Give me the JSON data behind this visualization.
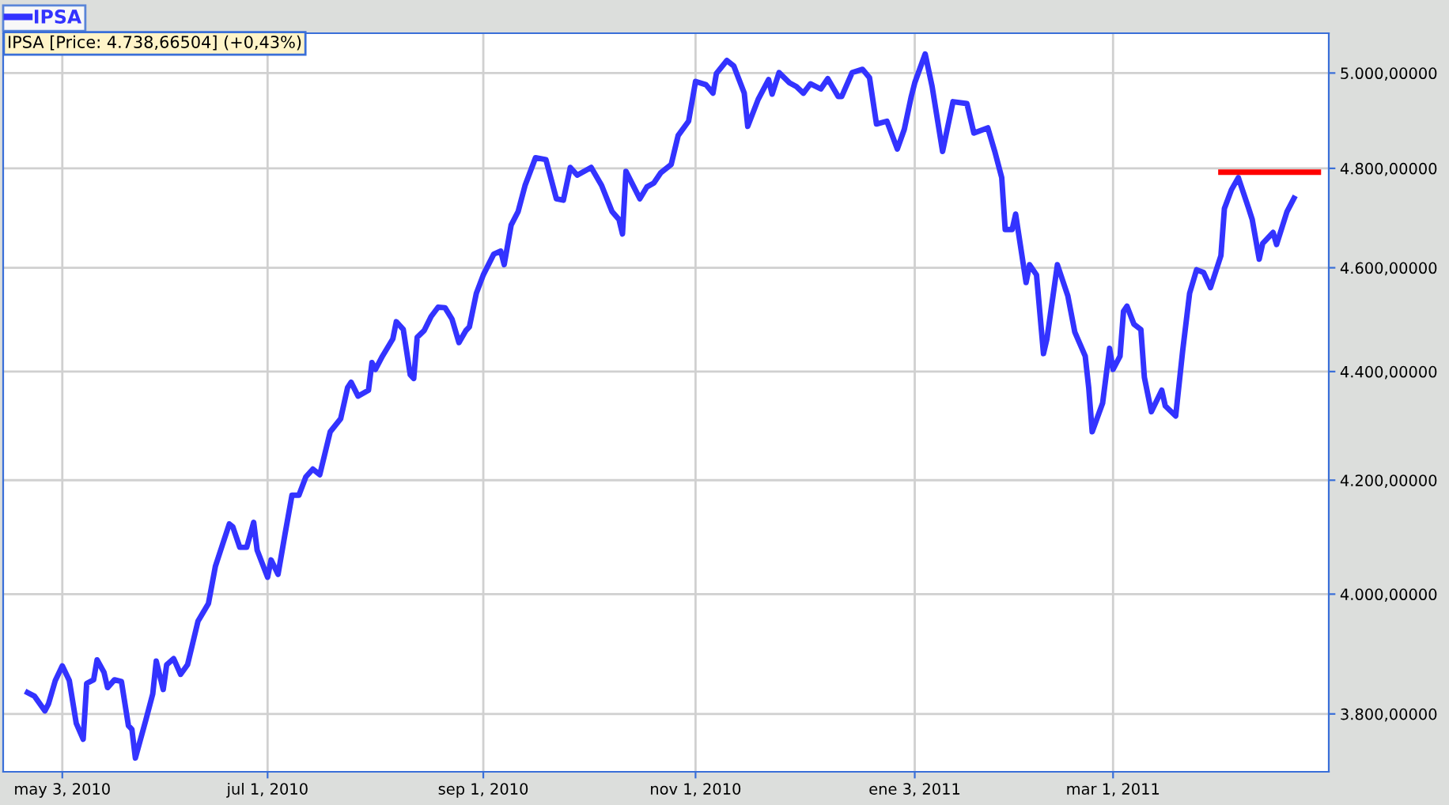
{
  "chart_data": {
    "type": "line",
    "log": true,
    "grid": true,
    "legend": "top left",
    "line_style": "solid",
    "marker": "none",
    "annotations": [
      "IPSA [Price: 4.738,66504] (+0,43%)"
    ],
    "xlim": [
      "2010-04-16",
      "2011-05-02"
    ],
    "xticks": [
      {
        "value": "2010-05-03",
        "label": "may 3, 2010"
      },
      {
        "value": "2010-07-01",
        "label": "jul 1, 2010"
      },
      {
        "value": "2010-09-01",
        "label": "sep 1, 2010"
      },
      {
        "value": "2010-11-01",
        "label": "nov 1, 2010"
      },
      {
        "value": "2011-01-03",
        "label": "ene 3, 2011"
      },
      {
        "value": "2011-03-01",
        "label": "mar 1, 2011"
      }
    ],
    "ylim": [
      3707,
      5086
    ],
    "yticks": [
      {
        "value": 3800,
        "label": "3.800,00000"
      },
      {
        "value": 4000,
        "label": "4.000,00000"
      },
      {
        "value": 4200,
        "label": "4.200,00000"
      },
      {
        "value": 4400,
        "label": "4.400,00000"
      },
      {
        "value": 4600,
        "label": "4.600,00000"
      },
      {
        "value": 4800,
        "label": "4.800,00000"
      },
      {
        "value": 5000,
        "label": "5.000,00000"
      }
    ],
    "series": [
      {
        "name": "IPSA",
        "color": "#3333ff",
        "x": [
          "2010-04-23",
          "2010-04-25",
          "2010-04-28",
          "2010-04-29",
          "2010-05-01",
          "2010-05-03",
          "2010-05-05",
          "2010-05-07",
          "2010-05-09",
          "2010-05-10",
          "2010-05-12",
          "2010-05-13",
          "2010-05-15",
          "2010-05-16",
          "2010-05-18",
          "2010-05-20",
          "2010-05-22",
          "2010-05-23",
          "2010-05-24",
          "2010-05-27",
          "2010-05-29",
          "2010-05-30",
          "2010-06-01",
          "2010-06-02",
          "2010-06-04",
          "2010-06-06",
          "2010-06-08",
          "2010-06-11",
          "2010-06-14",
          "2010-06-16",
          "2010-06-18",
          "2010-06-20",
          "2010-06-21",
          "2010-06-23",
          "2010-06-25",
          "2010-06-27",
          "2010-06-28",
          "2010-07-01",
          "2010-07-02",
          "2010-07-04",
          "2010-07-06",
          "2010-07-08",
          "2010-07-10",
          "2010-07-12",
          "2010-07-14",
          "2010-07-16",
          "2010-07-19",
          "2010-07-22",
          "2010-07-24",
          "2010-07-25",
          "2010-07-27",
          "2010-07-30",
          "2010-07-31",
          "2010-08-01",
          "2010-08-03",
          "2010-08-06",
          "2010-08-07",
          "2010-08-09",
          "2010-08-11",
          "2010-08-12",
          "2010-08-13",
          "2010-08-15",
          "2010-08-17",
          "2010-08-19",
          "2010-08-21",
          "2010-08-23",
          "2010-08-25",
          "2010-08-27",
          "2010-08-28",
          "2010-08-30",
          "2010-09-01",
          "2010-09-04",
          "2010-09-06",
          "2010-09-07",
          "2010-09-09",
          "2010-09-11",
          "2010-09-13",
          "2010-09-16",
          "2010-09-19",
          "2010-09-22",
          "2010-09-24",
          "2010-09-26",
          "2010-09-28",
          "2010-10-02",
          "2010-10-05",
          "2010-10-08",
          "2010-10-10",
          "2010-10-11",
          "2010-10-12",
          "2010-10-16",
          "2010-10-18",
          "2010-10-20",
          "2010-10-22",
          "2010-10-25",
          "2010-10-27",
          "2010-10-30",
          "2010-11-01",
          "2010-11-04",
          "2010-11-06",
          "2010-11-07",
          "2010-11-10",
          "2010-11-12",
          "2010-11-15",
          "2010-11-16",
          "2010-11-19",
          "2010-11-22",
          "2010-11-23",
          "2010-11-25",
          "2010-11-28",
          "2010-11-30",
          "2010-12-02",
          "2010-12-04",
          "2010-12-07",
          "2010-12-09",
          "2010-12-12",
          "2010-12-13",
          "2010-12-16",
          "2010-12-19",
          "2010-12-21",
          "2010-12-23",
          "2010-12-26",
          "2010-12-29",
          "2010-12-31",
          "2011-01-02",
          "2011-01-03",
          "2011-01-06",
          "2011-01-08",
          "2011-01-11",
          "2011-01-14",
          "2011-01-18",
          "2011-01-20",
          "2011-01-24",
          "2011-01-26",
          "2011-01-28",
          "2011-01-29",
          "2011-01-31",
          "2011-02-01",
          "2011-02-04",
          "2011-02-05",
          "2011-02-07",
          "2011-02-09",
          "2011-02-10",
          "2011-02-13",
          "2011-02-16",
          "2011-02-18",
          "2011-02-21",
          "2011-02-22",
          "2011-02-23",
          "2011-02-26",
          "2011-02-28",
          "2011-03-01",
          "2011-03-03",
          "2011-03-04",
          "2011-03-05",
          "2011-03-07",
          "2011-03-09",
          "2011-03-10",
          "2011-03-12",
          "2011-03-15",
          "2011-03-16",
          "2011-03-19",
          "2011-03-21",
          "2011-03-23",
          "2011-03-25",
          "2011-03-27",
          "2011-03-29",
          "2011-04-01",
          "2011-04-02",
          "2011-04-04",
          "2011-04-06",
          "2011-04-09",
          "2011-04-10",
          "2011-04-12",
          "2011-04-13",
          "2011-04-16",
          "2011-04-17",
          "2011-04-20",
          "2011-04-22"
        ],
        "values": [
          3835,
          3829,
          3805,
          3816,
          3855,
          3879,
          3855,
          3785,
          3759,
          3850,
          3856,
          3889,
          3868,
          3843,
          3856,
          3853,
          3781,
          3775,
          3729,
          3790,
          3833,
          3887,
          3840,
          3881,
          3891,
          3865,
          3881,
          3954,
          3984,
          4048,
          4085,
          4122,
          4117,
          4081,
          4081,
          4125,
          4076,
          4029,
          4059,
          4034,
          4104,
          4173,
          4173,
          4206,
          4220,
          4210,
          4288,
          4312,
          4370,
          4380,
          4354,
          4365,
          4417,
          4404,
          4429,
          4462,
          4495,
          4480,
          4394,
          4387,
          4465,
          4478,
          4505,
          4523,
          4522,
          4500,
          4455,
          4478,
          4485,
          4550,
          4586,
          4627,
          4633,
          4606,
          4685,
          4712,
          4765,
          4822,
          4818,
          4738,
          4735,
          4802,
          4786,
          4802,
          4765,
          4712,
          4696,
          4667,
          4794,
          4738,
          4762,
          4770,
          4791,
          4808,
          4868,
          4898,
          4982,
          4975,
          4957,
          4999,
          5027,
          5015,
          4957,
          4887,
          4944,
          4986,
          4955,
          5001,
          4979,
          4971,
          4957,
          4977,
          4966,
          4988,
          4950,
          4950,
          5001,
          5008,
          4990,
          4892,
          4898,
          4840,
          4881,
          4950,
          4979,
          5041,
          4971,
          4835,
          4939,
          4935,
          4873,
          4884,
          4835,
          4781,
          4676,
          4676,
          4707,
          4571,
          4606,
          4586,
          4434,
          4462,
          4606,
          4545,
          4475,
          4429,
          4370,
          4288,
          4341,
          4444,
          4404,
          4429,
          4515,
          4525,
          4490,
          4480,
          4389,
          4325,
          4365,
          4336,
          4317,
          4439,
          4550,
          4596,
          4591,
          4561,
          4624,
          4718,
          4756,
          4781,
          4718,
          4696,
          4617,
          4648,
          4670,
          4646,
          4712,
          4739
        ]
      },
      {
        "color": "#ff0000",
        "x": [
          "2011-04-01",
          "2011-04-29"
        ],
        "values": [
          4792,
          4792
        ]
      }
    ]
  }
}
